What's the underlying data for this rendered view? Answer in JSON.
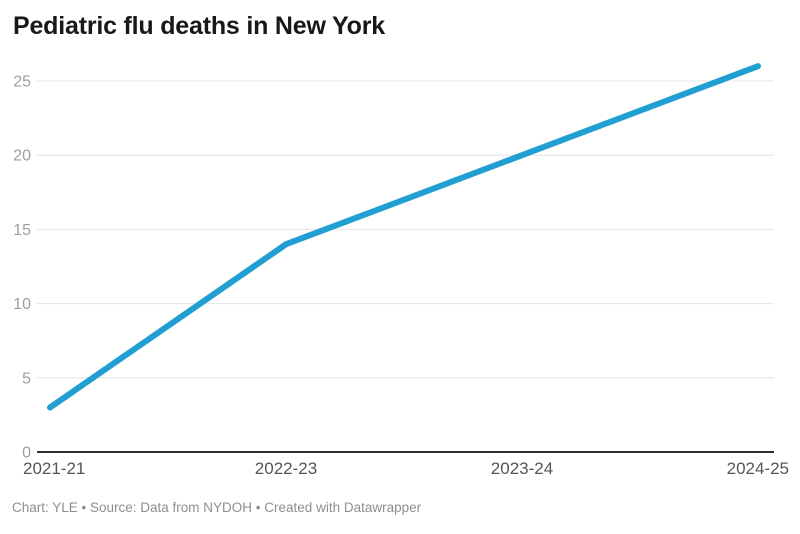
{
  "title": "Pediatric flu deaths in New York",
  "footer": "Chart: YLE • Source: Data from NYDOH • Created with Datawrapper",
  "colors": {
    "background": "#ffffff",
    "line": "#219ed2",
    "title": "#181818",
    "gridline": "#e4e4e4",
    "baseline": "#2e2e2e",
    "y_tick_label": "#9e9e9e",
    "x_tick_label": "#565656",
    "footer": "#8f8f8f"
  },
  "chart_data": {
    "type": "line",
    "categories": [
      "2021-21",
      "2022-23",
      "2023-24",
      "2024-25"
    ],
    "values": [
      3,
      14,
      20,
      26
    ],
    "title": "Pediatric flu deaths in New York",
    "xlabel": "",
    "ylabel": "",
    "ylim": [
      0,
      26
    ],
    "yticks": [
      0,
      5,
      10,
      15,
      20,
      25
    ],
    "grid": true,
    "legend": false,
    "annotations": []
  }
}
